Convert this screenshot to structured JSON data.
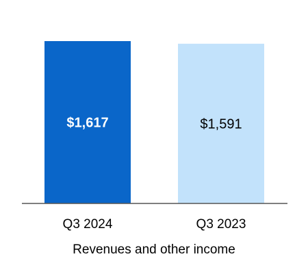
{
  "chart_data": {
    "type": "bar",
    "categories": [
      "Q3 2024",
      "Q3 2023"
    ],
    "values": [
      1617,
      1591
    ],
    "data_labels": [
      "$1,617",
      "$1,591"
    ],
    "xlabel": "Revenues and other income",
    "ylabel": "",
    "ylim": [
      0,
      1617
    ],
    "grid": false,
    "legend": "none",
    "colors": {
      "bars": [
        "#0a66c9",
        "#c2e2fb"
      ],
      "data_labels": [
        "#ffffff",
        "#000000"
      ],
      "axis": "#555555"
    }
  }
}
